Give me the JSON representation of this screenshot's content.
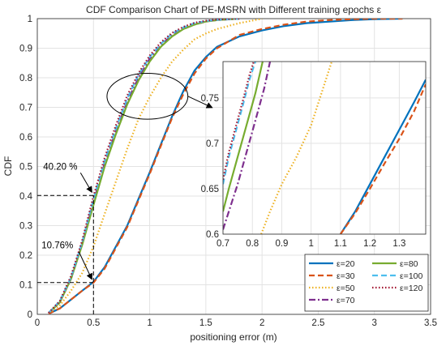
{
  "chart_data": [
    {
      "type": "line",
      "title": "CDF Comparison Chart of PE-MSRN with Different training epochs ε",
      "xlabel": "positioning error (m)",
      "ylabel": "CDF",
      "xlim": [
        0,
        3.5
      ],
      "ylim": [
        0,
        1
      ],
      "xticks": [
        "0",
        "0.5",
        "1",
        "1.5",
        "2",
        "2.5",
        "3",
        "3.5"
      ],
      "yticks": [
        "0",
        "0.1",
        "0.2",
        "0.3",
        "0.4",
        "0.5",
        "0.6",
        "0.7",
        "0.8",
        "0.9",
        "1"
      ],
      "grid": true,
      "legend_position": "bottom-right",
      "legend_columns": 2,
      "series": [
        {
          "name": "ε=20",
          "color": "#0072BD",
          "dash": "solid",
          "x": [
            0.1,
            0.2,
            0.3,
            0.4,
            0.5,
            0.6,
            0.7,
            0.8,
            0.9,
            1.0,
            1.1,
            1.2,
            1.3,
            1.4,
            1.5,
            1.6,
            1.8,
            2.0,
            2.2,
            2.4,
            2.6,
            2.8,
            3.0,
            3.25
          ],
          "y": [
            0.002,
            0.02,
            0.05,
            0.08,
            0.11,
            0.16,
            0.23,
            0.3,
            0.39,
            0.48,
            0.575,
            0.67,
            0.755,
            0.825,
            0.87,
            0.905,
            0.94,
            0.96,
            0.975,
            0.985,
            0.99,
            0.995,
            0.998,
            1.0
          ]
        },
        {
          "name": "ε=30",
          "color": "#D95319",
          "dash": "dashed",
          "x": [
            0.1,
            0.2,
            0.3,
            0.4,
            0.5,
            0.6,
            0.7,
            0.8,
            0.9,
            1.0,
            1.1,
            1.2,
            1.3,
            1.4,
            1.5,
            1.6,
            1.8,
            2.0,
            2.2,
            2.4,
            2.6,
            2.8,
            3.0,
            3.25
          ],
          "y": [
            0.002,
            0.02,
            0.05,
            0.08,
            0.107,
            0.155,
            0.225,
            0.295,
            0.385,
            0.475,
            0.57,
            0.665,
            0.745,
            0.815,
            0.865,
            0.9,
            0.945,
            0.965,
            0.98,
            0.99,
            0.995,
            0.998,
            1.0,
            1.0
          ]
        },
        {
          "name": "ε=50",
          "color": "#EDB120",
          "dash": "dotted",
          "x": [
            0.1,
            0.2,
            0.3,
            0.4,
            0.5,
            0.6,
            0.7,
            0.8,
            0.9,
            1.0,
            1.1,
            1.2,
            1.3,
            1.4,
            1.5,
            1.6,
            1.8,
            2.0
          ],
          "y": [
            0.005,
            0.03,
            0.08,
            0.14,
            0.23,
            0.34,
            0.45,
            0.56,
            0.66,
            0.735,
            0.8,
            0.855,
            0.895,
            0.93,
            0.95,
            0.965,
            0.985,
            1.0
          ]
        },
        {
          "name": "ε=70",
          "color": "#7E2F8E",
          "dash": "dashdot",
          "x": [
            0.1,
            0.2,
            0.3,
            0.4,
            0.5,
            0.6,
            0.7,
            0.8,
            0.9,
            1.0,
            1.1,
            1.2,
            1.3,
            1.4,
            1.5,
            1.6,
            1.8
          ],
          "y": [
            0.005,
            0.04,
            0.12,
            0.24,
            0.38,
            0.51,
            0.62,
            0.72,
            0.8,
            0.865,
            0.91,
            0.945,
            0.965,
            0.98,
            0.99,
            0.995,
            1.0
          ]
        },
        {
          "name": "ε=80",
          "color": "#77AC30",
          "dash": "solid",
          "x": [
            0.1,
            0.2,
            0.3,
            0.4,
            0.5,
            0.6,
            0.7,
            0.8,
            0.9,
            1.0,
            1.1,
            1.2,
            1.3,
            1.4,
            1.5,
            1.6,
            1.8
          ],
          "y": [
            0.005,
            0.04,
            0.12,
            0.235,
            0.37,
            0.5,
            0.61,
            0.71,
            0.79,
            0.855,
            0.905,
            0.94,
            0.965,
            0.98,
            0.99,
            0.995,
            1.0
          ]
        },
        {
          "name": "ε=100",
          "color": "#4DBEEE",
          "dash": "dashed",
          "x": [
            0.1,
            0.2,
            0.3,
            0.4,
            0.5,
            0.6,
            0.7,
            0.8,
            0.9,
            1.0,
            1.1,
            1.2,
            1.3,
            1.4,
            1.5,
            1.6,
            1.8
          ],
          "y": [
            0.005,
            0.045,
            0.125,
            0.245,
            0.39,
            0.52,
            0.63,
            0.73,
            0.81,
            0.87,
            0.915,
            0.95,
            0.97,
            0.985,
            0.992,
            0.996,
            1.0
          ]
        },
        {
          "name": "ε=120",
          "color": "#A2142F",
          "dash": "dotted",
          "x": [
            0.1,
            0.2,
            0.3,
            0.4,
            0.5,
            0.6,
            0.7,
            0.8,
            0.9,
            1.0,
            1.1,
            1.2,
            1.3,
            1.4,
            1.5,
            1.6,
            1.8
          ],
          "y": [
            0.005,
            0.045,
            0.13,
            0.25,
            0.4,
            0.53,
            0.64,
            0.74,
            0.815,
            0.875,
            0.92,
            0.952,
            0.972,
            0.986,
            0.993,
            0.997,
            1.0
          ]
        }
      ],
      "annotations": [
        {
          "text": "40.20 %",
          "points_to": {
            "x": 0.5,
            "y": 0.402
          }
        },
        {
          "text": "10.76%",
          "points_to": {
            "x": 0.5,
            "y": 0.1076
          }
        }
      ],
      "reference_lines": [
        {
          "x": [
            0,
            0.5
          ],
          "y": [
            0.402,
            0.402
          ]
        },
        {
          "x": [
            0,
            0.5
          ],
          "y": [
            0.1076,
            0.1076
          ]
        },
        {
          "x": [
            0.5,
            0.5
          ],
          "y": [
            0,
            0.402
          ]
        }
      ],
      "zoom_ellipse": {
        "x": [
          0.62,
          1.34
        ],
        "y": [
          0.66,
          0.815
        ]
      }
    },
    {
      "type": "line",
      "inset_of": 0,
      "xlim": [
        0.7,
        1.39
      ],
      "ylim": [
        0.6,
        0.79
      ],
      "xticks": [
        "0.7",
        "0.8",
        "0.9",
        "1",
        "1.1",
        "1.2",
        "1.3"
      ],
      "yticks": [
        "0.6",
        "0.65",
        "0.7",
        "0.75"
      ],
      "grid": true,
      "series": [
        {
          "name": "ε=20",
          "color": "#0072BD",
          "dash": "solid",
          "x": [
            1.1,
            1.15,
            1.2,
            1.25,
            1.3,
            1.35,
            1.39
          ],
          "y": [
            0.6,
            0.625,
            0.655,
            0.685,
            0.715,
            0.745,
            0.77
          ]
        },
        {
          "name": "ε=30",
          "color": "#D95319",
          "dash": "dashed",
          "x": [
            1.1,
            1.15,
            1.2,
            1.25,
            1.3,
            1.35,
            1.39
          ],
          "y": [
            0.6,
            0.623,
            0.65,
            0.678,
            0.705,
            0.735,
            0.765
          ]
        },
        {
          "name": "ε=50",
          "color": "#EDB120",
          "dash": "dotted",
          "x": [
            0.83,
            0.86,
            0.9,
            0.95,
            1.0,
            1.03,
            1.07
          ],
          "y": [
            0.6,
            0.625,
            0.655,
            0.685,
            0.72,
            0.75,
            0.79
          ]
        },
        {
          "name": "ε=70",
          "color": "#7E2F8E",
          "dash": "dashdot",
          "x": [
            0.7,
            0.72,
            0.75,
            0.78,
            0.81,
            0.84,
            0.86
          ],
          "y": [
            0.605,
            0.625,
            0.655,
            0.69,
            0.725,
            0.76,
            0.79
          ]
        },
        {
          "name": "ε=80",
          "color": "#77AC30",
          "dash": "solid",
          "x": [
            0.7,
            0.72,
            0.75,
            0.78,
            0.81,
            0.835
          ],
          "y": [
            0.625,
            0.65,
            0.685,
            0.72,
            0.755,
            0.79
          ]
        },
        {
          "name": "ε=100",
          "color": "#4DBEEE",
          "dash": "dashed",
          "x": [
            0.7,
            0.72,
            0.745,
            0.77,
            0.79,
            0.81
          ],
          "y": [
            0.655,
            0.685,
            0.715,
            0.745,
            0.77,
            0.79
          ]
        },
        {
          "name": "ε=120",
          "color": "#A2142F",
          "dash": "dotted",
          "x": [
            0.7,
            0.72,
            0.745,
            0.77,
            0.79,
            0.805
          ],
          "y": [
            0.66,
            0.69,
            0.72,
            0.75,
            0.775,
            0.79
          ]
        }
      ]
    }
  ]
}
